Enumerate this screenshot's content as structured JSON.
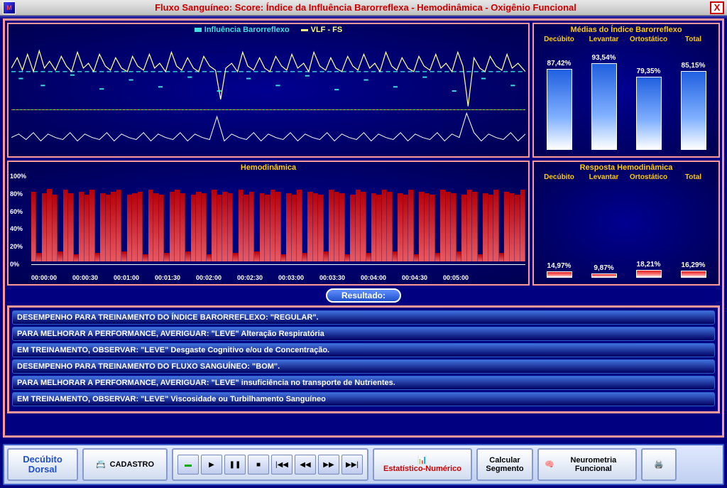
{
  "titlebar": {
    "title": "Fluxo Sanguíneo: Score: Índice da Influência Barorreflexa - Hemodinâmica - Oxigênio Funcional"
  },
  "top_chart": {
    "legend": [
      {
        "label": "Influência Barorreflexo",
        "color": "#40e0e0"
      },
      {
        "label": "VLF - FS",
        "color": "#ffff80"
      }
    ],
    "line_color_upper": "#ffffa0",
    "dash_color": "#40e0e0",
    "line_color_lower": "#ffffff",
    "bg": "#000070"
  },
  "hemo_chart": {
    "title": "Hemodinâmica",
    "ylabels": [
      "100%",
      "80%",
      "60%",
      "40%",
      "20%",
      "0%"
    ],
    "ylim": [
      0,
      100
    ],
    "bar_color": "#e03030",
    "marker_color": "#c0c0c0",
    "xlabels": [
      "00:00:00",
      "00:00:30",
      "00:01:00",
      "00:01:30",
      "00:02:00",
      "00:02:30",
      "00:03:00",
      "00:03:30",
      "00:04:00",
      "00:04:30",
      "00:05:00",
      ""
    ],
    "values": [
      82,
      10,
      80,
      85,
      78,
      12,
      84,
      80,
      8,
      82,
      78,
      84,
      10,
      80,
      78,
      82,
      84,
      12,
      78,
      80,
      82,
      8,
      84,
      80,
      78,
      10,
      82,
      84,
      80,
      12,
      78,
      82,
      80,
      8,
      84,
      78,
      82,
      80,
      10,
      84,
      78,
      82,
      12,
      80,
      78,
      84,
      82,
      8,
      80,
      78,
      84,
      10,
      82,
      80,
      78,
      12,
      84,
      82,
      80,
      8,
      78,
      84,
      82,
      10,
      80,
      78,
      84,
      82,
      12,
      80,
      78,
      84,
      8,
      82,
      80,
      78,
      10,
      84,
      82,
      80,
      12,
      78,
      84,
      82,
      8,
      80,
      78,
      84,
      10,
      82,
      80,
      78,
      84
    ]
  },
  "baro_bars": {
    "title": "Médias do Índice Barorreflexo",
    "cols": [
      {
        "label": "Decúbito",
        "value": "87,42%",
        "h": 87.42
      },
      {
        "label": "Levantar",
        "value": "93,54%",
        "h": 93.54
      },
      {
        "label": "Ortostático",
        "value": "79,35%",
        "h": 79.35
      },
      {
        "label": "Total",
        "value": "85,15%",
        "h": 85.15
      }
    ],
    "bar_gradient_top": "#2060e0",
    "bar_gradient_bottom": "#ffffff"
  },
  "hemo_bars": {
    "title": "Resposta Hemodinâmica",
    "cols": [
      {
        "label": "Decúbito",
        "value": "14,97%",
        "h": 14.97
      },
      {
        "label": "Levantar",
        "value": "9,87%",
        "h": 9.87
      },
      {
        "label": "Ortostático",
        "value": "18,21%",
        "h": 18.21
      },
      {
        "label": "Total",
        "value": "16,29%",
        "h": 16.29
      }
    ],
    "bar_gradient_top": "#e02020",
    "bar_gradient_bottom": "#ffffff"
  },
  "result_banner": "Resultado:",
  "results": [
    "DESEMPENHO PARA TREINAMENTO DO ÍNDICE BARORREFLEXO: \"REGULAR\".",
    "PARA MELHORAR A PERFORMANCE, AVERIGUAR: \"LEVE\" Alteração Respiratória",
    "EM TREINAMENTO, OBSERVAR: \"LEVE\" Desgaste Cognitivo e/ou de Concentração.",
    "DESEMPENHO PARA TREINAMENTO DO FLUXO SANGUÍNEO: \"BOM\".",
    "PARA MELHORAR A PERFORMANCE, AVERIGUAR: \"LEVE\" insuficiência no transporte de Nutrientes.",
    "EM TREINAMENTO, OBSERVAR: \"LEVE\" Viscosidade ou Turbilhamento Sanguíneo"
  ],
  "bottom": {
    "decubito": "Decúbito Dorsal",
    "cadastro": "CADASTRO",
    "estatistico": "Estatístico-Numérico",
    "calcular": "Calcular Segmento",
    "neurometria": "Neurometria Funcional"
  },
  "colors": {
    "frame_border": "#ff9999",
    "panel_bg": "#000080",
    "accent_yellow": "#ffcc00",
    "accent_red": "#cc0000"
  }
}
